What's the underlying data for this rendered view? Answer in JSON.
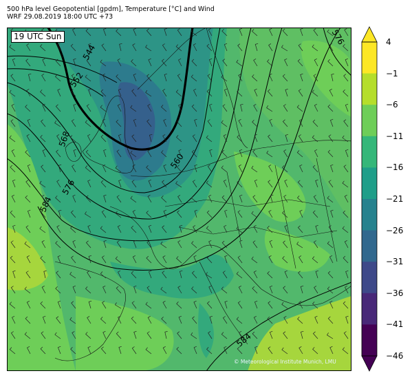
{
  "header": {
    "title_line1": "500 hPa level Geopotential [gpdm], Temperature [°C] and Wind",
    "title_line2": "WRF 29.08.2019 18:00 UTC +73"
  },
  "map": {
    "time_label": "19 UTC Sun",
    "copyright": "© Meteorological Institute Munich, LMU",
    "contour_labels": [
      "544",
      "552",
      "568",
      "576",
      "584",
      "560",
      "584",
      "576"
    ]
  },
  "colorbar": {
    "tick_labels": [
      "4",
      "−1",
      "−6",
      "−11",
      "−16",
      "−21",
      "−26",
      "−31",
      "−36",
      "−41",
      "−46"
    ],
    "colors": [
      "#fde725",
      "#b5de2b",
      "#6ece58",
      "#35b779",
      "#1f9e89",
      "#26828e",
      "#31688e",
      "#3e4989",
      "#482878",
      "#440154"
    ]
  },
  "palette": {
    "t_m6": "#78c65a",
    "t_m11": "#52b86c",
    "t_m16": "#33a97c",
    "t_m21": "#2d9486",
    "t_m26": "#2d7b8d",
    "t_m31": "#35608c",
    "t_warm": "#a6d63d"
  }
}
